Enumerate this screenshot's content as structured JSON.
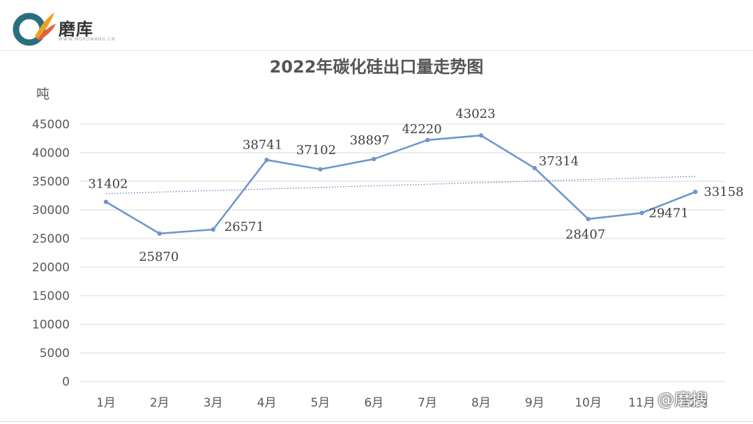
{
  "header": {
    "logo_name": "磨库",
    "logo_subtitle": "WWW.MOKUWANG.CN",
    "logo_colors": [
      "#2a6f7f",
      "#f0a020",
      "#e7603a"
    ]
  },
  "watermark": "@磨搜",
  "chart_data": {
    "type": "line",
    "title": "2022年碳化硅出口量走势图",
    "ylabel": "吨",
    "xlabel": "",
    "categories": [
      "1月",
      "2月",
      "3月",
      "4月",
      "5月",
      "6月",
      "7月",
      "8月",
      "9月",
      "10月",
      "11月",
      "12月"
    ],
    "series": [
      {
        "values": [
          31402,
          25870,
          26571,
          38741,
          37102,
          38897,
          42220,
          43023,
          37314,
          28407,
          29471,
          33158
        ]
      }
    ],
    "data_labels": [
      "31402",
      "25870",
      "26571",
      "38741",
      "37102",
      "38897",
      "42220",
      "43023",
      "37314",
      "28407",
      "29471",
      "33158"
    ],
    "trendline": {
      "type": "linear",
      "style": "dotted"
    },
    "ylim": [
      0,
      45000
    ],
    "yticks": [
      "0",
      "5000",
      "10000",
      "15000",
      "20000",
      "25000",
      "30000",
      "35000",
      "40000",
      "45000"
    ],
    "grid": true,
    "legend": "none",
    "line_color": "#6f97cc",
    "trend_color": "#5b84c0",
    "grid_color": "#d9d9d9"
  }
}
